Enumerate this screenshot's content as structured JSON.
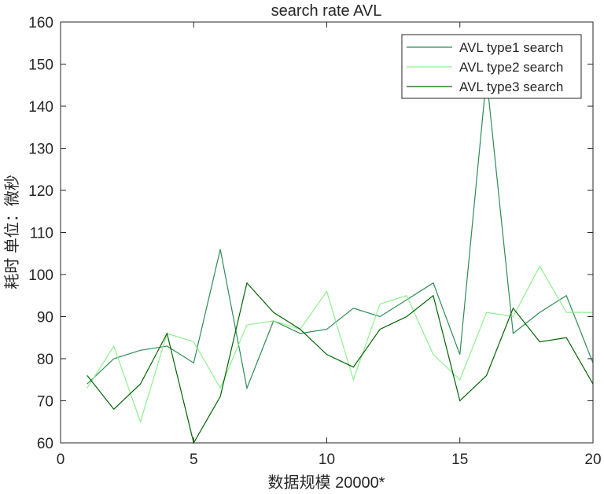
{
  "chart_data": {
    "type": "line",
    "title": "search rate  AVL",
    "xlabel": "数据规模 20000*",
    "ylabel": "耗时 单位：微秒",
    "xlim": [
      0,
      20
    ],
    "ylim": [
      60,
      160
    ],
    "xticks": [
      0,
      5,
      10,
      15,
      20
    ],
    "yticks": [
      60,
      70,
      80,
      90,
      100,
      110,
      120,
      130,
      140,
      150,
      160
    ],
    "grid": false,
    "legend_position": "top-right",
    "x": [
      1,
      2,
      3,
      4,
      5,
      6,
      7,
      8,
      9,
      10,
      11,
      12,
      13,
      14,
      15,
      16,
      17,
      18,
      19,
      20
    ],
    "series": [
      {
        "name": "AVL type1 search",
        "color": "#2e8b57",
        "values": [
          74,
          80,
          82,
          83,
          79,
          106,
          73,
          89,
          86,
          87,
          92,
          90,
          94,
          98,
          81,
          147,
          86,
          91,
          95,
          79
        ]
      },
      {
        "name": "AVL type2 search",
        "color": "#90ee90",
        "values": [
          73,
          83,
          65,
          86,
          84,
          73,
          88,
          89,
          87,
          96,
          75,
          93,
          95,
          81,
          75,
          91,
          90,
          102,
          91,
          91
        ]
      },
      {
        "name": "AVL type3 search",
        "color": "#006400",
        "values": [
          76,
          68,
          74,
          86,
          60,
          71,
          98,
          91,
          87,
          81,
          78,
          87,
          90,
          95,
          70,
          76,
          92,
          84,
          85,
          74
        ]
      }
    ]
  }
}
